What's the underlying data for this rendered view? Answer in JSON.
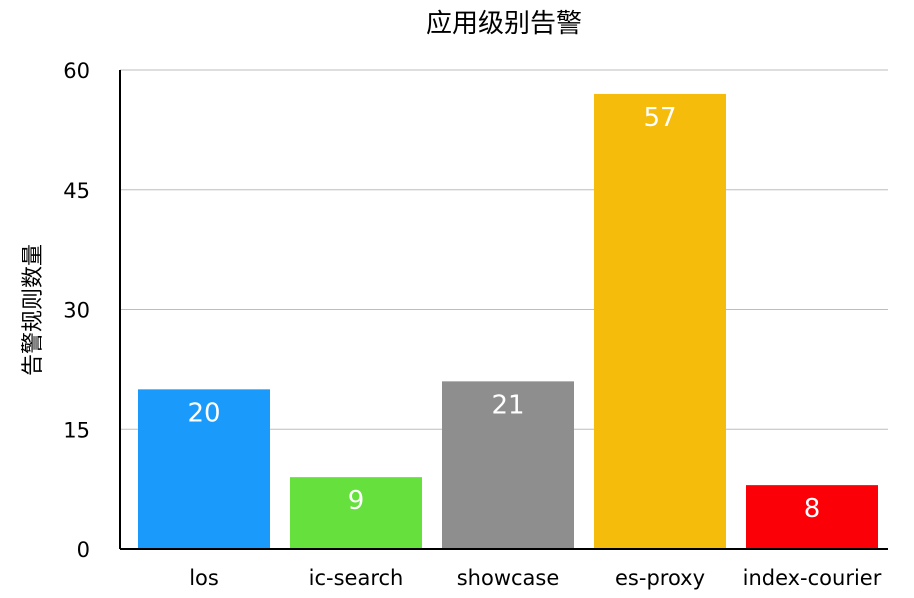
{
  "chart_data": {
    "type": "bar",
    "title": "应用级别告警",
    "xlabel": "",
    "ylabel": "告警规则数量",
    "categories": [
      "los",
      "ic-search",
      "showcase",
      "es-proxy",
      "index-courier"
    ],
    "values": [
      20,
      9,
      21,
      57,
      8
    ],
    "colors": [
      "#1a9bfc",
      "#65e03c",
      "#8e8e8e",
      "#f5bc0c",
      "#fb0007"
    ],
    "ylim": [
      0,
      60
    ],
    "yticks": [
      0,
      15,
      30,
      45,
      60
    ],
    "grid": true,
    "data_labels": true
  }
}
